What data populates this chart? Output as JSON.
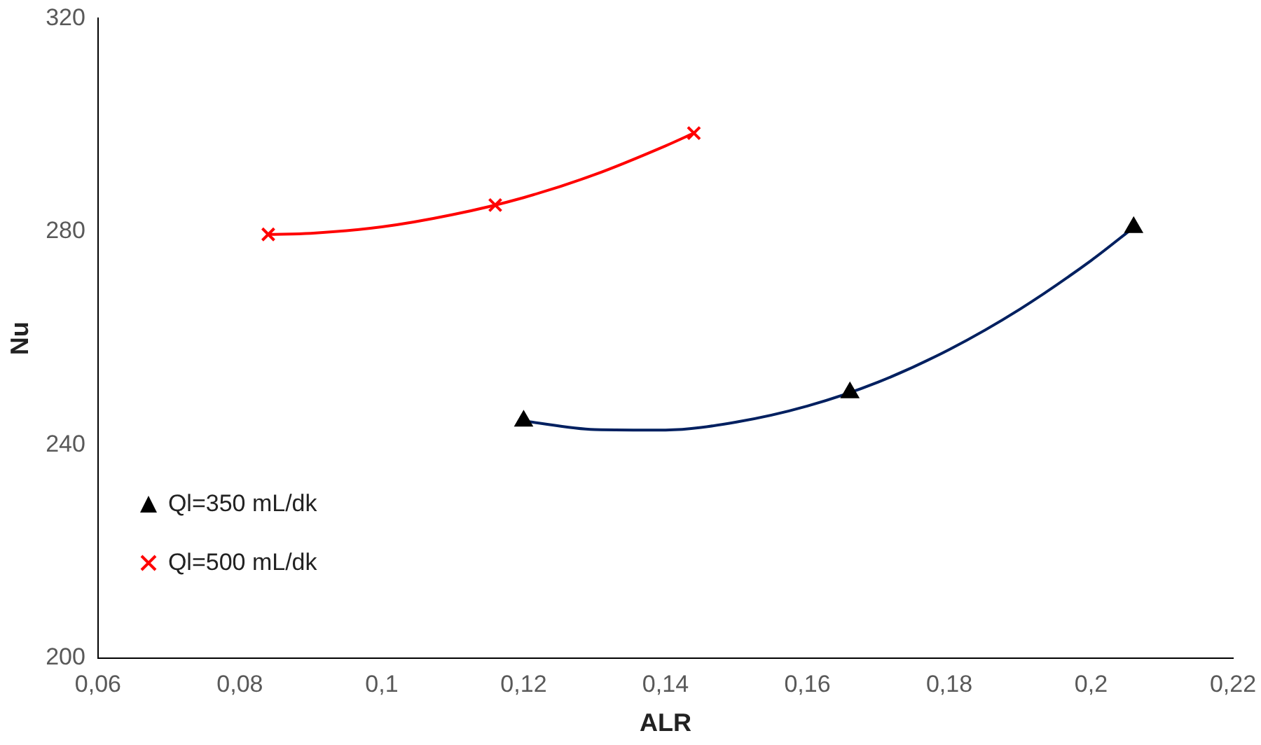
{
  "chart_data": {
    "type": "scatter",
    "xlabel": "ALR",
    "ylabel": "Nu",
    "xlim": [
      0.06,
      0.22
    ],
    "xticks": [
      {
        "value": 0.06,
        "label": "0,06"
      },
      {
        "value": 0.08,
        "label": "0,08"
      },
      {
        "value": 0.1,
        "label": "0,1"
      },
      {
        "value": 0.12,
        "label": "0,12"
      },
      {
        "value": 0.14,
        "label": "0,14"
      },
      {
        "value": 0.16,
        "label": "0,16"
      },
      {
        "value": 0.18,
        "label": "0,18"
      },
      {
        "value": 0.2,
        "label": "0,2"
      },
      {
        "value": 0.22,
        "label": "0,22"
      }
    ],
    "ylim": [
      200,
      320
    ],
    "yticks": [
      200,
      240,
      280,
      320
    ],
    "grid": false,
    "legend": "bottom left",
    "series": [
      {
        "name": "Ql=350 mL/dk",
        "marker": "triangle",
        "color": "#000000",
        "x": [
          0.12,
          0.166,
          0.206
        ],
        "values": [
          244.5,
          249.8,
          280.8
        ]
      },
      {
        "name": "Ql=500 mL/dk",
        "marker": "cross",
        "color": "#ff0000",
        "x": [
          0.084,
          0.116,
          0.144
        ],
        "values": [
          279.5,
          285.0,
          298.5
        ]
      },
      {
        "type": "line",
        "marker": "none",
        "color": "#002060",
        "x": [
          0.12,
          0.13,
          0.14,
          0.15,
          0.16,
          0.17,
          0.18,
          0.19,
          0.2,
          0.206
        ],
        "values": [
          244.5,
          242.9,
          242.8,
          244.3,
          247.3,
          251.8,
          257.9,
          265.5,
          274.6,
          280.8
        ]
      },
      {
        "type": "line",
        "marker": "none",
        "color": "#ff0000",
        "x": [
          0.084,
          0.09,
          0.1,
          0.11,
          0.12,
          0.13,
          0.14,
          0.144
        ],
        "values": [
          279.5,
          279.7,
          280.9,
          283.2,
          286.4,
          290.7,
          296.1,
          298.5
        ]
      }
    ]
  }
}
